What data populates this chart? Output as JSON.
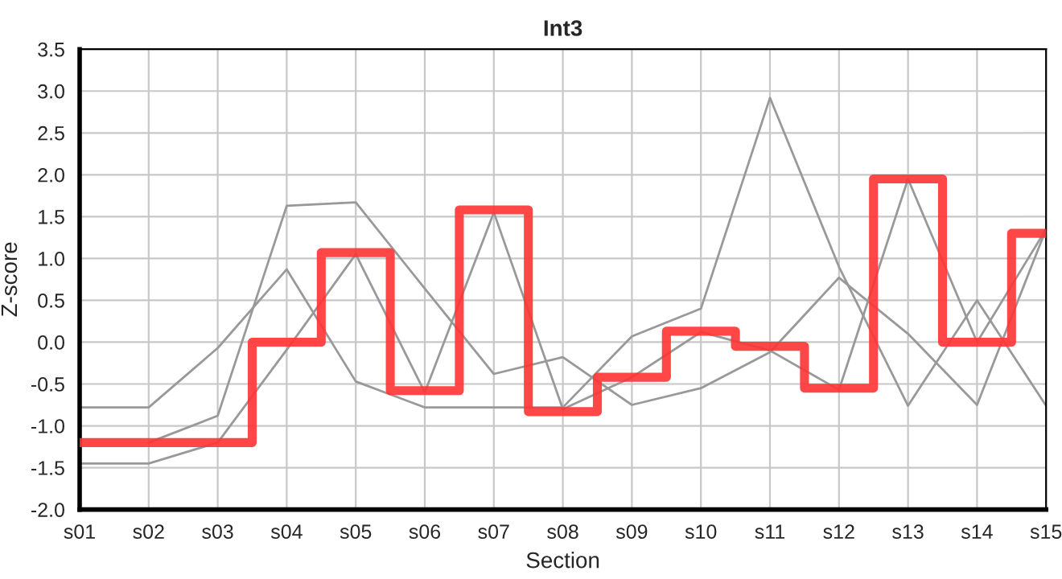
{
  "chart_data": {
    "type": "line",
    "title": "Int3",
    "xlabel": "Section",
    "ylabel": "Z-score",
    "categories": [
      "s01",
      "s02",
      "s03",
      "s04",
      "s05",
      "s06",
      "s07",
      "s08",
      "s09",
      "s10",
      "s11",
      "s12",
      "s13",
      "s14",
      "s15"
    ],
    "series": [
      {
        "color": "#999999",
        "values": [
          -0.78,
          -0.78,
          -0.07,
          0.87,
          -0.47,
          -0.78,
          -0.78,
          -0.78,
          0.07,
          0.4,
          2.92,
          0.9,
          -0.76,
          0.5,
          -0.76
        ]
      },
      {
        "color": "#999999",
        "values": [
          -1.45,
          -1.45,
          -1.2,
          -0.09,
          1.05,
          -0.6,
          1.55,
          -0.8,
          -0.42,
          0.12,
          -0.1,
          -0.57,
          1.95,
          0.0,
          1.35
        ]
      },
      {
        "color": "#999999",
        "values": [
          null,
          -1.2,
          -0.88,
          1.63,
          1.67,
          0.64,
          -0.38,
          -0.18,
          -0.75,
          -0.55,
          -0.12,
          0.77,
          0.1,
          -0.75,
          1.35
        ]
      },
      {
        "type": "step",
        "color": "#ff3333",
        "values": [
          -1.2,
          -1.2,
          -1.2,
          0.0,
          1.07,
          -0.58,
          1.58,
          -0.83,
          -0.42,
          0.13,
          -0.05,
          -0.55,
          1.95,
          0.0,
          1.3
        ]
      }
    ],
    "ylim": [
      -2.0,
      3.5
    ],
    "yticks": [
      {
        "value": -2.0,
        "label": "-2.0"
      },
      -1.5,
      {
        "value": -1.0,
        "label": "-1.0"
      },
      -0.5,
      {
        "value": 0.0,
        "label": "0.0"
      },
      0.5,
      {
        "value": 1.0,
        "label": "1.0"
      },
      1.5,
      {
        "value": 2.0,
        "label": "2.0"
      },
      2.5,
      {
        "value": 3.0,
        "label": "3.0"
      },
      3.5
    ],
    "grid": true
  }
}
